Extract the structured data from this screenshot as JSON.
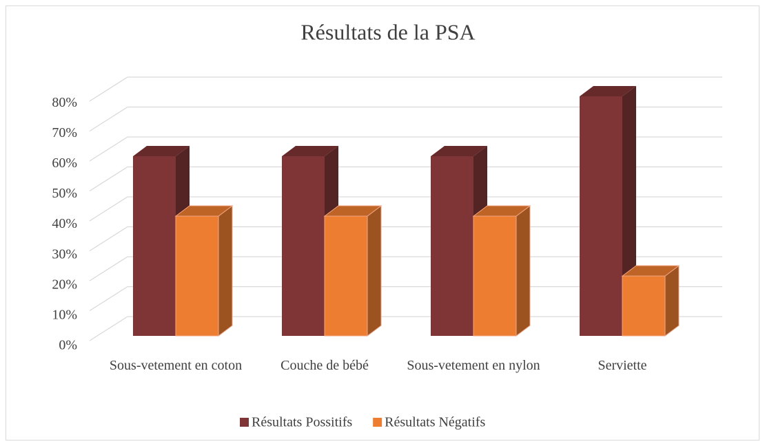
{
  "chart_data": {
    "type": "bar3d",
    "title": "Résultats de la PSA",
    "categories": [
      "Sous-vetement en coton",
      "Couche de bébé",
      "Sous-vetement en nylon",
      "Serviette"
    ],
    "series": [
      {
        "name": "Résultats Possitifs",
        "color": "#7f3535",
        "values": [
          60,
          60,
          60,
          80
        ]
      },
      {
        "name": "Résultats Négatifs",
        "color": "#ed7d31",
        "values": [
          40,
          40,
          40,
          20
        ]
      }
    ],
    "ylim": [
      0,
      80
    ],
    "yticks": [
      {
        "value": 0,
        "label": "0%"
      },
      {
        "value": 10,
        "label": "10%"
      },
      {
        "value": 20,
        "label": "20%"
      },
      {
        "value": 30,
        "label": "30%"
      },
      {
        "value": 40,
        "label": "40%"
      },
      {
        "value": 50,
        "label": "50%"
      },
      {
        "value": 60,
        "label": "60%"
      },
      {
        "value": 70,
        "label": "70%"
      },
      {
        "value": 80,
        "label": "80%"
      }
    ],
    "grid": true,
    "legend": "bottom"
  }
}
